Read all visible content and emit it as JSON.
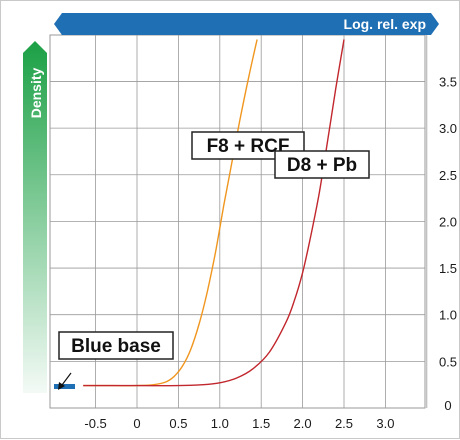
{
  "colors": {
    "header_bar": "#1f6fb4",
    "density_bar": "#1ba045",
    "curve_f8": "#f0961e",
    "curve_d8": "#c1272d",
    "blue_base_marker": "#1f6fb4",
    "grid": "#9a9a9a"
  },
  "chart_data": {
    "type": "line",
    "title": "",
    "xlabel": "Log. rel. exp",
    "ylabel": "Density",
    "xlim": [
      -0.9,
      3.55
    ],
    "ylim": [
      0,
      3.95
    ],
    "x_ticks": [
      "-0.5",
      "0",
      "0.5",
      "1.0",
      "1.5",
      "2.0",
      "2.5",
      "3.0"
    ],
    "y_ticks": [
      "0",
      "0.5",
      "1.0",
      "1.5",
      "2.0",
      "2.5",
      "3.0",
      "3.5"
    ],
    "grid": true,
    "annotations": [
      {
        "text": "F8 + RCF",
        "near_series": "F8 + RCF"
      },
      {
        "text": "D8 + Pb",
        "near_series": "D8 + Pb"
      },
      {
        "text": "Blue base",
        "points_to": "blue base marker on y-axis at density ~0.23"
      }
    ],
    "blue_base": 0.23,
    "series": [
      {
        "name": "F8 + RCF",
        "color_key": "curve_f8",
        "x": [
          -0.65,
          -0.3,
          0.0,
          0.2,
          0.35,
          0.45,
          0.55,
          0.65,
          0.75,
          0.85,
          0.95,
          1.05,
          1.15,
          1.25,
          1.35,
          1.45
        ],
        "y": [
          0.24,
          0.24,
          0.24,
          0.25,
          0.28,
          0.34,
          0.45,
          0.63,
          0.9,
          1.25,
          1.68,
          2.18,
          2.65,
          3.12,
          3.55,
          3.95
        ]
      },
      {
        "name": "D8 + Pb",
        "color_key": "curve_d8",
        "x": [
          -0.65,
          0.0,
          0.5,
          0.8,
          1.0,
          1.2,
          1.4,
          1.6,
          1.8,
          1.9,
          2.0,
          2.1,
          2.2,
          2.3,
          2.4,
          2.5
        ],
        "y": [
          0.24,
          0.24,
          0.24,
          0.25,
          0.27,
          0.32,
          0.42,
          0.6,
          0.92,
          1.15,
          1.45,
          1.85,
          2.3,
          2.85,
          3.42,
          3.95
        ]
      }
    ]
  }
}
